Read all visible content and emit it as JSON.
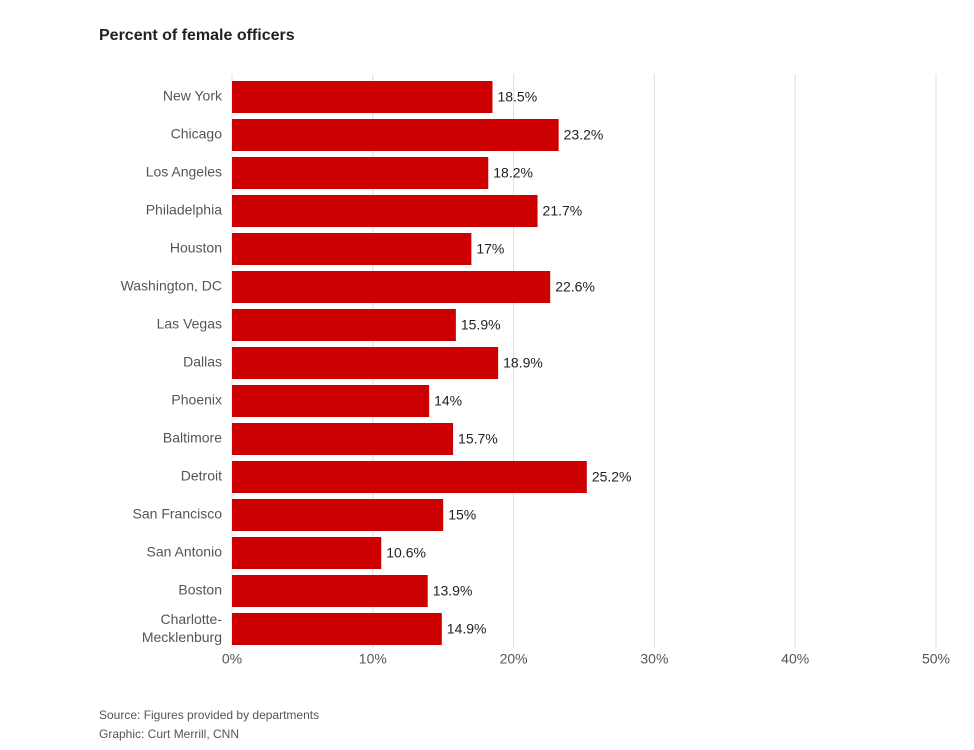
{
  "chart_data": {
    "type": "hbar",
    "title": "Percent of female officers",
    "categories": [
      "New York",
      "Chicago",
      "Los Angeles",
      "Philadelphia",
      "Houston",
      "Washington, DC",
      "Las Vegas",
      "Dallas",
      "Phoenix",
      "Baltimore",
      "Detroit",
      "San Francisco",
      "San Antonio",
      "Boston",
      "Charlotte-Mecklenburg"
    ],
    "values": [
      18.5,
      23.2,
      18.2,
      21.7,
      17,
      22.6,
      15.9,
      18.9,
      14,
      15.7,
      25.2,
      15,
      10.6,
      13.9,
      14.9
    ],
    "value_labels": [
      "18.5%",
      "23.2%",
      "18.2%",
      "21.7%",
      "17%",
      "22.6%",
      "15.9%",
      "18.9%",
      "14%",
      "15.7%",
      "25.2%",
      "15%",
      "10.6%",
      "13.9%",
      "14.9%"
    ],
    "color": "#cc0000",
    "xlim": [
      0,
      50
    ],
    "xticks": [
      {
        "value": 0,
        "label": "0%"
      },
      {
        "value": 10,
        "label": "10%"
      },
      {
        "value": 20,
        "label": "20%"
      },
      {
        "value": 30,
        "label": "30%"
      },
      {
        "value": 40,
        "label": "40%"
      },
      {
        "value": 50,
        "label": "50%"
      }
    ],
    "grid": true,
    "source": "Source: Figures provided by departments",
    "credit": "Graphic: Curt Merrill, CNN"
  }
}
